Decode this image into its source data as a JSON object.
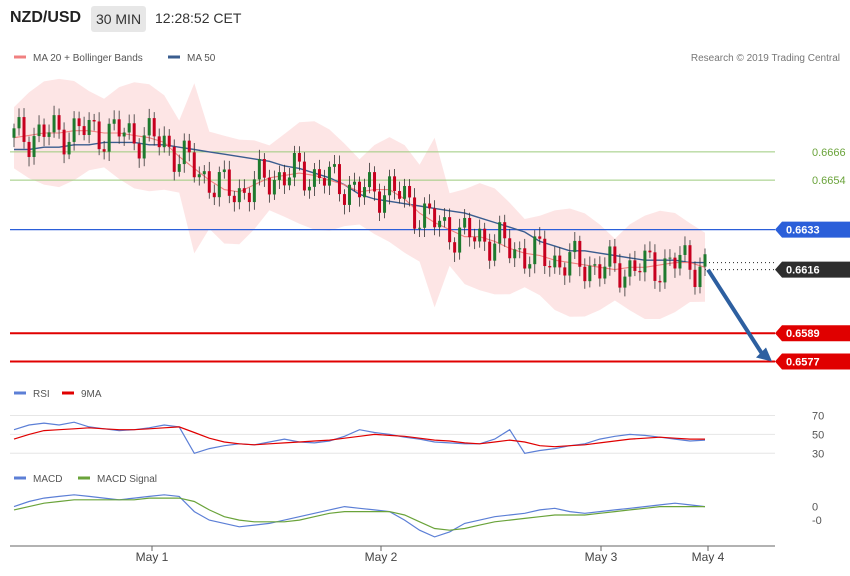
{
  "header": {
    "symbol": "NZD/USD",
    "timeframe": "30 MIN",
    "time": "12:28:52 CET"
  },
  "copyright": "Research © 2019 Trading Central",
  "colors": {
    "candle": "#1e7a2e",
    "candle_down": "#c7001f",
    "ma20": "#f08080",
    "ma50": "#3a5d8f",
    "band": "#fde0e0",
    "resistance_line": "#2b5fd9",
    "support": "#e00000",
    "pivot_green": "#9ccb7c",
    "arrow": "#2d5fa0",
    "rsi": "#5c7fd6",
    "rsi_ma": "#e00000",
    "macd": "#5c7fd6",
    "macd_signal": "#6aa33a"
  },
  "chart_data": [
    {
      "type": "line",
      "panel": "price",
      "series": [
        {
          "name": "MA 20 + Bollinger Bands",
          "values": [
            0.6672,
            0.6673,
            0.6674,
            0.6674,
            0.6675,
            0.6675,
            0.6674,
            0.6674,
            0.6673,
            0.6672,
            0.667,
            0.6664,
            0.6659,
            0.6654,
            0.665,
            0.6649,
            0.6652,
            0.6655,
            0.6656,
            0.6657,
            0.6656,
            0.6654,
            0.6652,
            0.6649,
            0.665,
            0.665,
            0.6646,
            0.664,
            0.6636,
            0.6633,
            0.663,
            0.663,
            0.6628,
            0.6625,
            0.6623,
            0.6622,
            0.662,
            0.6619,
            0.6618,
            0.6617,
            0.6616,
            0.6617,
            0.6617,
            0.6618,
            0.6619,
            0.6619,
            0.6617
          ]
        },
        {
          "name": "MA 50",
          "values": [
            0.6667,
            0.6667,
            0.6668,
            0.6668,
            0.6669,
            0.6669,
            0.667,
            0.667,
            0.667,
            0.6669,
            0.6669,
            0.6668,
            0.6667,
            0.6666,
            0.6665,
            0.6664,
            0.6663,
            0.6662,
            0.666,
            0.6659,
            0.6657,
            0.6655,
            0.6652,
            0.6648,
            0.6646,
            0.6645,
            0.6644,
            0.6643,
            0.6642,
            0.6641,
            0.664,
            0.6638,
            0.6636,
            0.6634,
            0.6632,
            0.6628,
            0.6626,
            0.6624,
            0.6624,
            0.6623,
            0.6622,
            0.6621,
            0.662,
            0.662,
            0.662,
            0.6619,
            0.6619
          ]
        }
      ],
      "x_labels": [
        "May 1",
        "May 2",
        "May 3",
        "May 4"
      ],
      "levels": [
        {
          "value": 0.6666,
          "label": "0.6666",
          "style": "pivot"
        },
        {
          "value": 0.6654,
          "label": "0.6654",
          "style": "pivot"
        },
        {
          "value": 0.6633,
          "label": "0.6633",
          "style": "resistance"
        },
        {
          "value": 0.6616,
          "label": "0.6616",
          "style": "last"
        },
        {
          "value": 0.6589,
          "label": "0.6589",
          "style": "support"
        },
        {
          "value": 0.6577,
          "label": "0.6577",
          "style": "support"
        }
      ],
      "ylim": [
        0.657,
        0.6705
      ]
    },
    {
      "type": "line",
      "panel": "rsi",
      "series": [
        {
          "name": "RSI",
          "values": [
            55,
            60,
            62,
            60,
            63,
            58,
            56,
            54,
            55,
            57,
            60,
            58,
            30,
            35,
            38,
            40,
            39,
            42,
            45,
            42,
            41,
            43,
            48,
            55,
            52,
            50,
            47,
            45,
            42,
            41,
            40,
            40,
            45,
            55,
            30,
            33,
            35,
            38,
            40,
            45,
            48,
            50,
            49,
            47,
            45,
            43,
            44
          ]
        },
        {
          "name": "9MA",
          "values": [
            45,
            50,
            54,
            55,
            56,
            57,
            56,
            55,
            55,
            56,
            57,
            58,
            52,
            46,
            42,
            40,
            39,
            40,
            41,
            42,
            43,
            44,
            46,
            48,
            50,
            49,
            48,
            46,
            44,
            43,
            41,
            40,
            42,
            44,
            42,
            38,
            37,
            38,
            39,
            41,
            43,
            45,
            46,
            47,
            46,
            45,
            45
          ]
        }
      ],
      "ticks": [
        "70",
        "50",
        "30"
      ],
      "ylim": [
        25,
        78
      ]
    },
    {
      "type": "line",
      "panel": "macd",
      "series": [
        {
          "name": "MACD",
          "values": [
            0,
            3,
            5,
            6,
            7,
            6,
            5,
            4,
            5,
            6,
            7,
            6,
            -3,
            -8,
            -10,
            -12,
            -11,
            -10,
            -8,
            -6,
            -4,
            -2,
            0,
            -1,
            -2,
            -3,
            -8,
            -14,
            -18,
            -15,
            -10,
            -8,
            -6,
            -5,
            -4,
            -2,
            -1,
            -3,
            -4,
            -3,
            -2,
            -1,
            0,
            1,
            2,
            1,
            0
          ]
        },
        {
          "name": "MACD Signal",
          "values": [
            -2,
            0,
            2,
            3,
            4,
            4,
            4,
            4,
            4,
            5,
            5,
            5,
            3,
            -2,
            -6,
            -8,
            -9,
            -9,
            -9,
            -8,
            -6,
            -4,
            -3,
            -3,
            -3,
            -3,
            -5,
            -9,
            -13,
            -14,
            -13,
            -11,
            -9,
            -8,
            -7,
            -6,
            -5,
            -5,
            -5,
            -4,
            -3,
            -2,
            -1,
            0,
            0,
            0,
            0
          ]
        }
      ],
      "ticks": [
        "0",
        "-0"
      ],
      "ylim": [
        -21,
        11
      ]
    }
  ]
}
